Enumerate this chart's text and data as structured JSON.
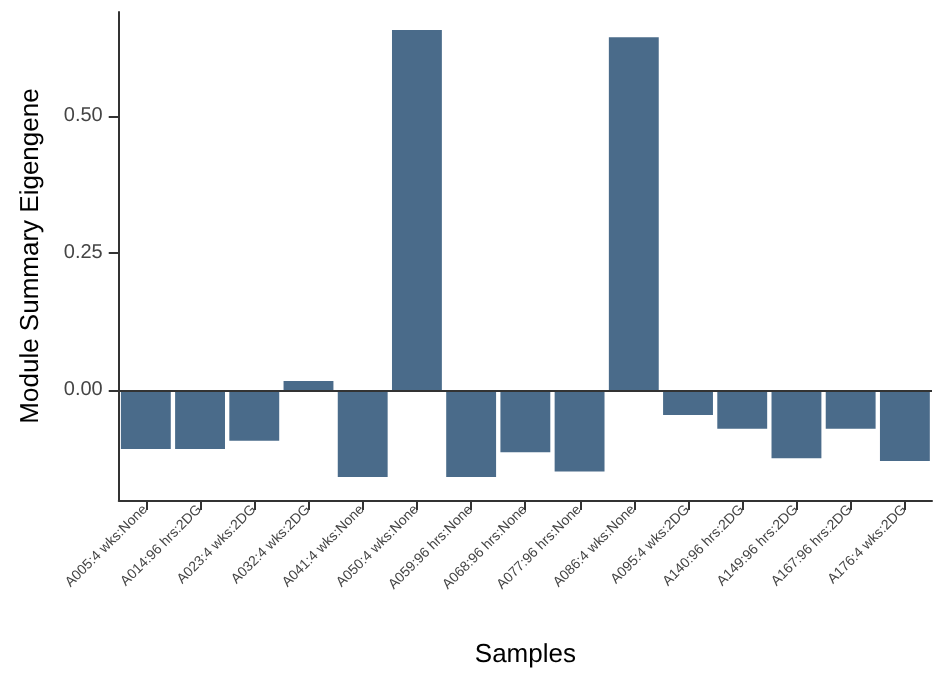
{
  "chart_data": {
    "type": "bar",
    "xlabel": "Samples",
    "ylabel": "Module Summary Eigengene",
    "categories": [
      "A005:4 wks:None",
      "A014:96 hrs:2DG",
      "A023:4 wks:2DG",
      "A032:4 wks:2DG",
      "A041:4 wks:None",
      "A050:4 wks:None",
      "A059:96 hrs:None",
      "A068:96 hrs:None",
      "A077:96 hrs:None",
      "A086:4 wks:None",
      "A095:4 wks:2DG",
      "A140:96 hrs:2DG",
      "A149:96 hrs:2DG",
      "A167:96 hrs:2DG",
      "A176:4 wks:2DG"
    ],
    "values": [
      -0.107,
      -0.107,
      -0.092,
      0.017,
      -0.158,
      0.657,
      -0.158,
      -0.113,
      -0.148,
      0.644,
      -0.045,
      -0.07,
      -0.124,
      -0.07,
      -0.129
    ],
    "color": "#4a6b8a",
    "ylim": [
      -0.2,
      0.69
    ],
    "yticks": [
      {
        "value": 0,
        "label": "0.00"
      },
      {
        "value": 0.25,
        "label": "0.25"
      },
      {
        "value": 0.5,
        "label": "0.50"
      }
    ],
    "ref_lines": [
      {
        "axis": "y",
        "value": 0,
        "color": "#333333"
      }
    ],
    "grid": false
  }
}
